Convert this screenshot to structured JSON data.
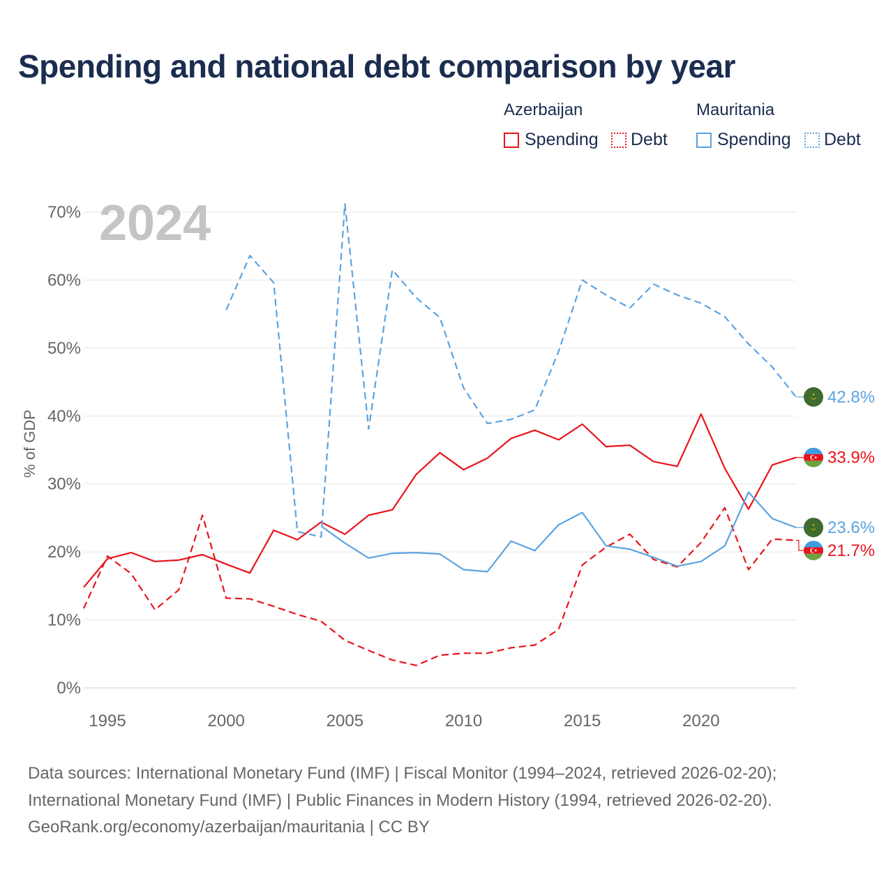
{
  "title": "Spending and national debt comparison by year",
  "legend": {
    "groups": [
      {
        "name": "Azerbaijan",
        "spending_label": "Spending",
        "debt_label": "Debt",
        "color": "#e8141b"
      },
      {
        "name": "Mauritania",
        "spending_label": "Spending",
        "debt_label": "Debt",
        "color": "#5ba3e0"
      }
    ]
  },
  "footer": {
    "line1": "Data sources: International Monetary Fund (IMF) | Fiscal Monitor (1994–2024, retrieved 2026-02-20);",
    "line2": "International Monetary Fund (IMF) | Public Finances in Modern History (1994, retrieved 2026-02-20).",
    "line3": "GeoRank.org/economy/azerbaijan/mauritania | CC BY"
  },
  "chart_data": {
    "type": "line",
    "title": "Spending and national debt comparison by year",
    "year_label": "2024",
    "ylabel": "% of GDP",
    "xlabel": "",
    "xlim": [
      1994,
      2024
    ],
    "ylim": [
      0,
      70
    ],
    "x_ticks": [
      1995,
      2000,
      2005,
      2010,
      2015,
      2020
    ],
    "y_ticks": [
      "0%",
      "10%",
      "20%",
      "30%",
      "40%",
      "50%",
      "60%",
      "70%"
    ],
    "grid": true,
    "series": [
      {
        "name": "Azerbaijan Spending",
        "country": "Azerbaijan",
        "kind": "spending",
        "color": "#e8141b",
        "dash": "",
        "x": [
          1994,
          1995,
          1996,
          1997,
          1998,
          1999,
          2000,
          2001,
          2002,
          2003,
          2004,
          2005,
          2006,
          2007,
          2008,
          2009,
          2010,
          2011,
          2012,
          2013,
          2014,
          2015,
          2016,
          2017,
          2018,
          2019,
          2020,
          2021,
          2022,
          2023,
          2024
        ],
        "values": [
          14.8,
          19.0,
          19.9,
          18.6,
          18.8,
          19.6,
          18.2,
          16.9,
          23.2,
          21.8,
          24.4,
          22.6,
          25.4,
          26.2,
          31.4,
          34.6,
          32.1,
          33.8,
          36.7,
          37.9,
          36.5,
          38.8,
          35.5,
          35.7,
          33.3,
          32.6,
          40.3,
          32.3,
          26.3,
          32.8,
          33.9
        ],
        "end_label": "33.9%"
      },
      {
        "name": "Azerbaijan Debt",
        "country": "Azerbaijan",
        "kind": "debt",
        "color": "#e8141b",
        "dash": "10,6",
        "x": [
          1994,
          1995,
          1996,
          1997,
          1998,
          1999,
          2000,
          2001,
          2002,
          2003,
          2004,
          2005,
          2006,
          2007,
          2008,
          2009,
          2010,
          2011,
          2012,
          2013,
          2014,
          2015,
          2016,
          2017,
          2018,
          2019,
          2020,
          2021,
          2022,
          2023,
          2024
        ],
        "values": [
          11.7,
          19.4,
          16.8,
          11.5,
          14.4,
          25.4,
          13.2,
          13.1,
          12.0,
          10.8,
          9.8,
          7.0,
          5.5,
          4.1,
          3.3,
          4.8,
          5.1,
          5.1,
          5.9,
          6.3,
          8.6,
          18.1,
          20.7,
          22.6,
          18.9,
          17.8,
          21.4,
          26.5,
          17.4,
          21.9,
          21.7
        ],
        "end_label": "21.7%"
      },
      {
        "name": "Mauritania Spending",
        "country": "Mauritania",
        "kind": "spending",
        "color": "#5ba3e0",
        "dash": "",
        "x": [
          2004,
          2005,
          2006,
          2007,
          2008,
          2009,
          2010,
          2011,
          2012,
          2013,
          2014,
          2015,
          2016,
          2017,
          2018,
          2019,
          2020,
          2021,
          2022,
          2023,
          2024
        ],
        "values": [
          23.8,
          21.3,
          19.1,
          19.8,
          19.9,
          19.7,
          17.4,
          17.1,
          21.6,
          20.2,
          24.0,
          25.8,
          20.9,
          20.4,
          19.2,
          17.9,
          18.6,
          20.9,
          28.8,
          24.9,
          23.6
        ],
        "end_label": "23.6%"
      },
      {
        "name": "Mauritania Debt",
        "country": "Mauritania",
        "kind": "debt",
        "color": "#5ba3e0",
        "dash": "10,6",
        "x": [
          2000,
          2001,
          2002,
          2003,
          2004,
          2005,
          2006,
          2007,
          2008,
          2009,
          2010,
          2011,
          2012,
          2013,
          2014,
          2015,
          2016,
          2017,
          2018,
          2019,
          2020,
          2021,
          2022,
          2023,
          2024
        ],
        "values": [
          55.6,
          63.6,
          59.6,
          23.0,
          22.2,
          71.2,
          38.1,
          61.5,
          57.4,
          54.5,
          44.1,
          38.9,
          39.5,
          40.9,
          49.5,
          60.0,
          57.8,
          55.9,
          59.4,
          57.8,
          56.6,
          54.6,
          50.6,
          47.2,
          42.8
        ],
        "end_label": "42.8%"
      }
    ]
  }
}
